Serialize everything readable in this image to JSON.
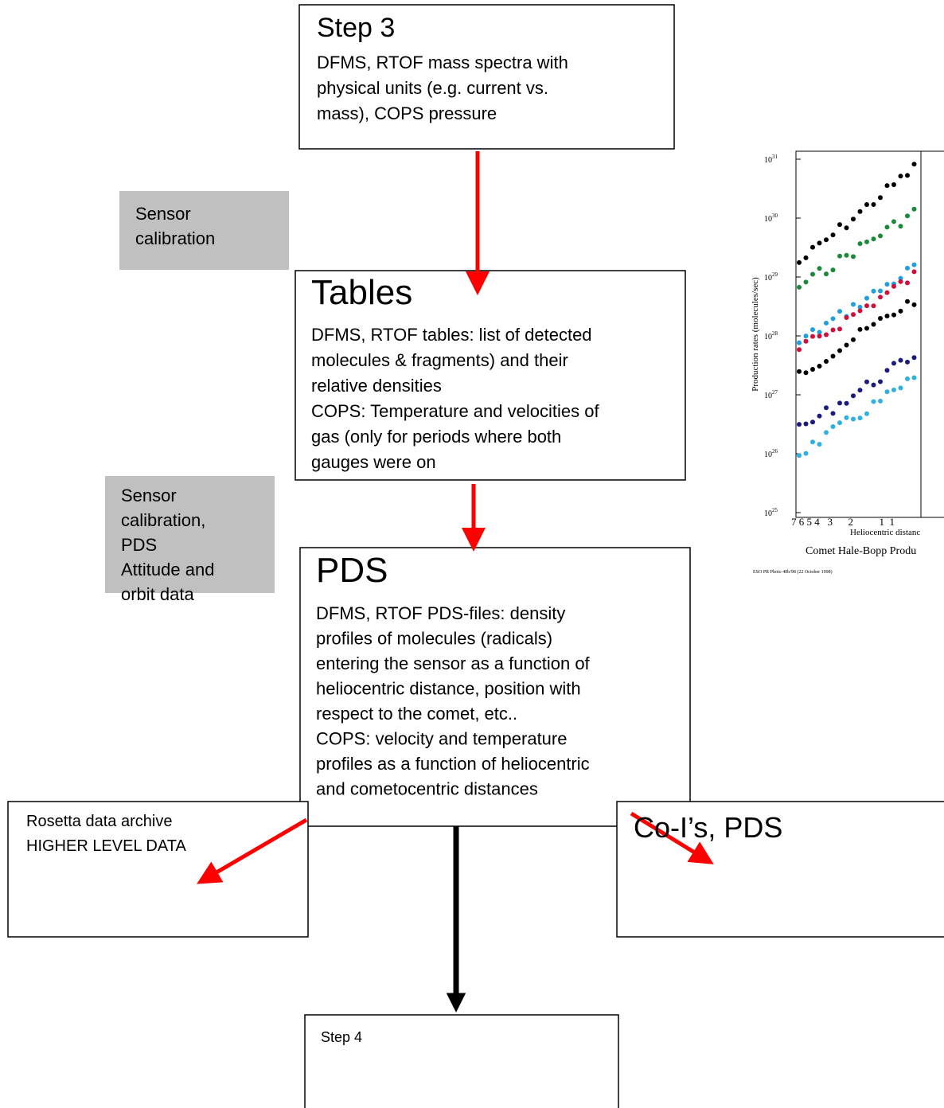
{
  "nodes": [
    {
      "title": "Step 3",
      "lines": [
        "DFMS, RTOF mass spectra with",
        "physical units (e.g. current vs.",
        "mass), COPS pressure"
      ]
    },
    {
      "title": "Tables",
      "lines": [
        "DFMS, RTOF tables: list of detected",
        "molecules & fragments) and their",
        "relative densities",
        "COPS: Temperature and velocities of",
        "gas (only for periods where both",
        "gauges were on"
      ]
    },
    {
      "title": "PDS",
      "lines": [
        "DFMS, RTOF PDS-files: density",
        "profiles of molecules (radicals)",
        "entering the sensor as a function of",
        "heliocentric distance, position with",
        "respect to the comet, etc..",
        "COPS: velocity and temperature",
        "profiles as a function of heliocentric",
        "and cometocentric distances"
      ]
    },
    {
      "lines": [
        "Rosetta data archive",
        "HIGHER LEVEL DATA"
      ]
    },
    {
      "lines": [
        "Co-I’s, PDS"
      ]
    },
    {
      "lines": [
        "Step 4"
      ]
    }
  ],
  "notes": [
    {
      "lines": [
        "Sensor",
        "calibration"
      ]
    },
    {
      "lines": [
        "Sensor",
        "calibration,",
        "PDS",
        "Attitude and",
        "orbit data"
      ]
    }
  ],
  "image": {
    "y_label": "Production rates (molecules/sec)",
    "y_ticks": [
      {
        "base": "10",
        "exp": "31"
      },
      {
        "base": "10",
        "exp": "30"
      },
      {
        "base": "10",
        "exp": "29"
      },
      {
        "base": "10",
        "exp": "28"
      },
      {
        "base": "10",
        "exp": "27"
      },
      {
        "base": "10",
        "exp": "26"
      },
      {
        "base": "10",
        "exp": "25"
      }
    ],
    "x_ticks": "7 6 5 4   3      2          1  1",
    "x_label": "Heliocentric distanc",
    "caption": "Comet Hale-Bopp Produ",
    "credit": "ESO PR Photo 40b/98 (22 October 1998)"
  }
}
